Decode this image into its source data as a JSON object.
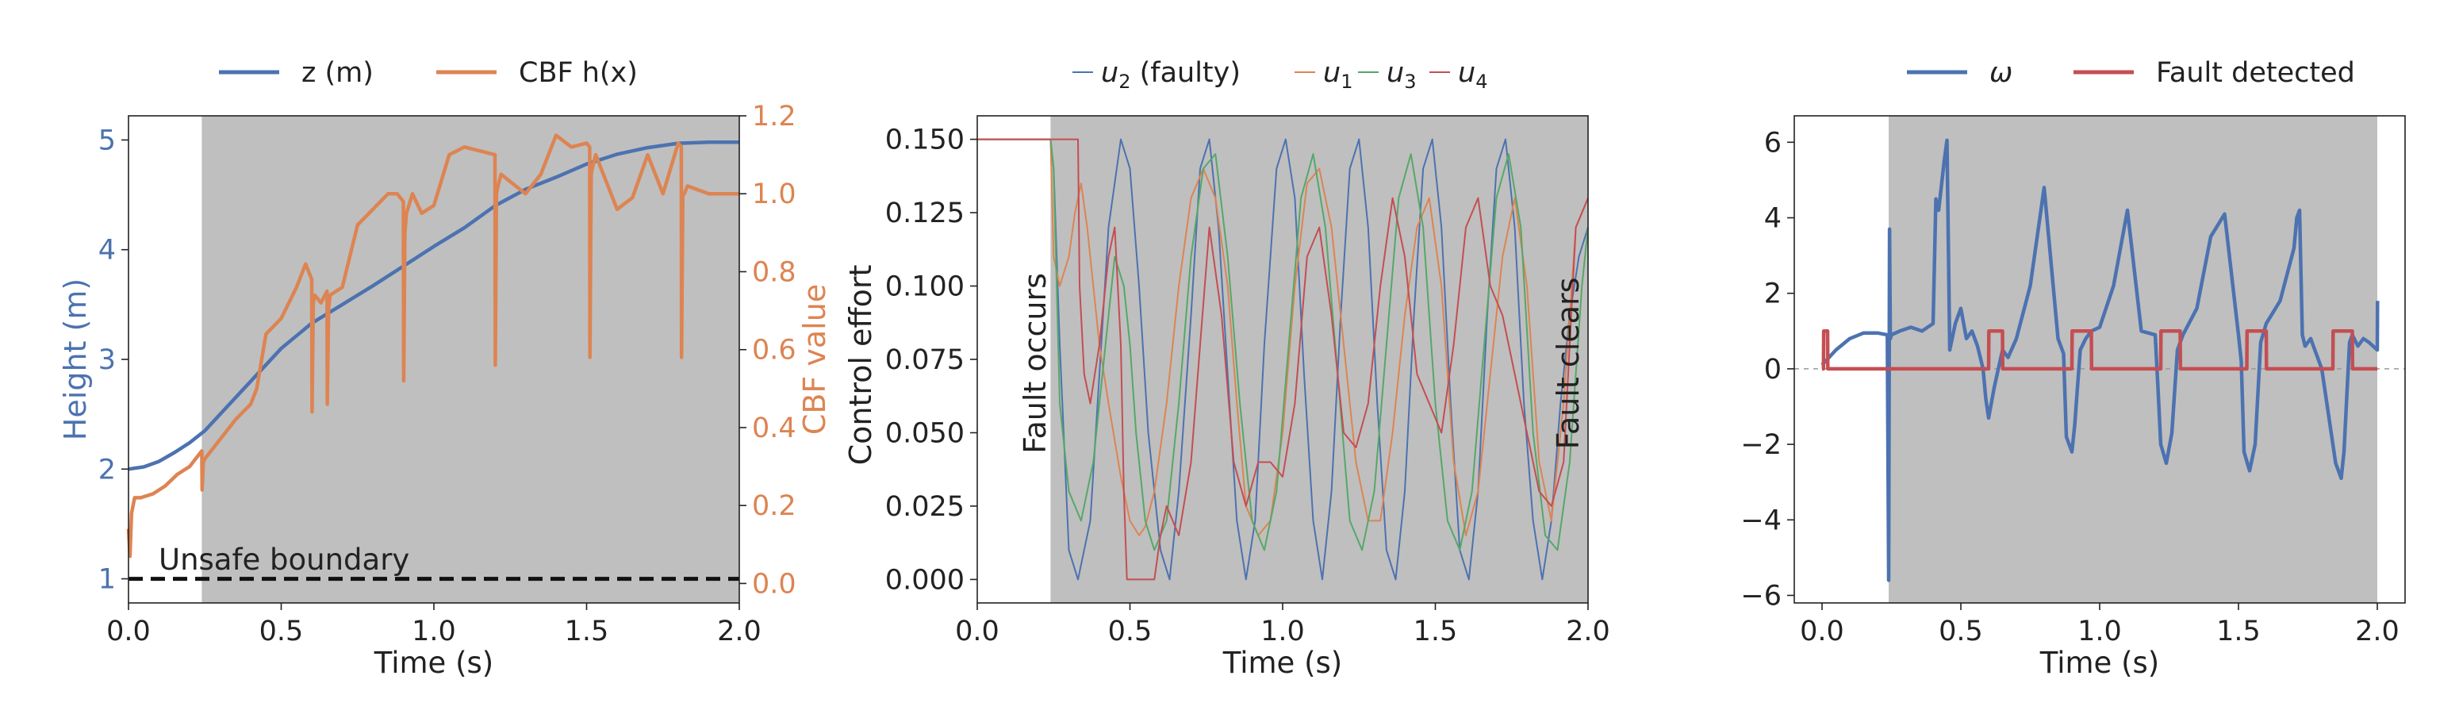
{
  "chart_data": [
    {
      "type": "line",
      "legend": {
        "placement": "top-center",
        "entries": [
          "z (m)",
          "CBF h(x)"
        ]
      },
      "xlabel": "Time (s)",
      "ylabel": "Height (m)",
      "y2label": "CBF value",
      "xlim": [
        0,
        2
      ],
      "ylim": [
        0.78,
        5.22
      ],
      "y2lim": [
        -0.05,
        1.2
      ],
      "xticks": [
        "0.0",
        "0.5",
        "1.0",
        "1.5",
        "2.0"
      ],
      "yticks": [
        "1",
        "2",
        "3",
        "4",
        "5"
      ],
      "y2ticks": [
        "0.0",
        "0.2",
        "0.4",
        "0.6",
        "0.8",
        "1.0",
        "1.2"
      ],
      "shaded_region": [
        0.24,
        2.0
      ],
      "annotation": "Unsafe boundary",
      "boundary_y": 1,
      "series": [
        {
          "name": "z (m)",
          "color": "#4c72b0",
          "axis": "left",
          "x": [
            0,
            0.05,
            0.1,
            0.15,
            0.2,
            0.25,
            0.3,
            0.4,
            0.5,
            0.6,
            0.7,
            0.8,
            0.9,
            1.0,
            1.1,
            1.2,
            1.3,
            1.4,
            1.5,
            1.6,
            1.7,
            1.8,
            1.9,
            2.0
          ],
          "y": [
            2.0,
            2.02,
            2.07,
            2.15,
            2.24,
            2.35,
            2.5,
            2.8,
            3.1,
            3.33,
            3.5,
            3.67,
            3.85,
            4.03,
            4.2,
            4.4,
            4.55,
            4.66,
            4.78,
            4.87,
            4.93,
            4.97,
            4.98,
            4.98
          ]
        },
        {
          "name": "CBF h(x)",
          "color": "#dd8452",
          "axis": "right",
          "x": [
            0,
            0.005,
            0.01,
            0.02,
            0.04,
            0.08,
            0.12,
            0.16,
            0.2,
            0.24,
            0.241,
            0.245,
            0.25,
            0.3,
            0.35,
            0.4,
            0.42,
            0.45,
            0.5,
            0.55,
            0.58,
            0.6,
            0.601,
            0.605,
            0.61,
            0.63,
            0.65,
            0.651,
            0.655,
            0.66,
            0.7,
            0.75,
            0.8,
            0.85,
            0.88,
            0.9,
            0.901,
            0.905,
            0.91,
            0.93,
            0.96,
            1.0,
            1.05,
            1.1,
            1.15,
            1.2,
            1.201,
            1.205,
            1.21,
            1.22,
            1.3,
            1.35,
            1.4,
            1.45,
            1.5,
            1.51,
            1.511,
            1.515,
            1.52,
            1.53,
            1.6,
            1.65,
            1.7,
            1.75,
            1.8,
            1.81,
            1.811,
            1.815,
            1.82,
            1.83,
            1.9,
            2.0
          ],
          "y": [
            0.14,
            0.07,
            0.18,
            0.22,
            0.22,
            0.23,
            0.25,
            0.28,
            0.3,
            0.34,
            0.24,
            0.31,
            0.32,
            0.37,
            0.42,
            0.46,
            0.5,
            0.64,
            0.68,
            0.76,
            0.82,
            0.78,
            0.44,
            0.72,
            0.74,
            0.72,
            0.75,
            0.46,
            0.7,
            0.74,
            0.76,
            0.92,
            0.96,
            1.0,
            1.0,
            0.98,
            0.52,
            0.9,
            0.95,
            1.0,
            0.95,
            0.97,
            1.1,
            1.12,
            1.11,
            1.1,
            0.56,
            1.0,
            1.02,
            1.05,
            1.0,
            1.05,
            1.15,
            1.12,
            1.13,
            1.12,
            0.58,
            1.05,
            1.07,
            1.1,
            0.96,
            0.99,
            1.1,
            1.0,
            1.13,
            1.12,
            0.58,
            1.0,
            1.0,
            1.02,
            1.0,
            1.0
          ]
        }
      ]
    },
    {
      "type": "line",
      "legend": {
        "placement": "top-center",
        "entries": [
          "u2 (faulty)",
          "u1",
          "u3",
          "u4"
        ]
      },
      "xlabel": "Time (s)",
      "ylabel": "Control effort",
      "xlim": [
        0,
        2
      ],
      "ylim": [
        -0.008,
        0.158
      ],
      "xticks": [
        "0.0",
        "0.5",
        "1.0",
        "1.5",
        "2.0"
      ],
      "yticks": [
        "0.000",
        "0.025",
        "0.050",
        "0.075",
        "0.100",
        "0.125",
        "0.150"
      ],
      "shaded_region": [
        0.24,
        2.0
      ],
      "annotations": [
        "Fault occurs",
        "Fault clears"
      ],
      "series": [
        {
          "name": "u2 (faulty)",
          "color": "#4c72b0",
          "x": [
            0,
            0.24,
            0.25,
            0.27,
            0.3,
            0.33,
            0.37,
            0.4,
            0.43,
            0.47,
            0.5,
            0.53,
            0.56,
            0.6,
            0.63,
            0.66,
            0.7,
            0.73,
            0.76,
            0.79,
            0.82,
            0.85,
            0.88,
            0.91,
            0.94,
            0.98,
            1.01,
            1.04,
            1.07,
            1.1,
            1.13,
            1.16,
            1.19,
            1.22,
            1.25,
            1.28,
            1.31,
            1.34,
            1.37,
            1.4,
            1.43,
            1.46,
            1.49,
            1.52,
            1.55,
            1.58,
            1.61,
            1.64,
            1.67,
            1.7,
            1.73,
            1.76,
            1.79,
            1.82,
            1.85,
            1.88,
            1.91,
            1.94,
            1.97,
            2.0
          ],
          "y": [
            0.15,
            0.15,
            0.14,
            0.08,
            0.01,
            0.0,
            0.02,
            0.07,
            0.12,
            0.15,
            0.14,
            0.1,
            0.05,
            0.01,
            0.0,
            0.03,
            0.09,
            0.14,
            0.15,
            0.12,
            0.07,
            0.02,
            0.0,
            0.02,
            0.08,
            0.14,
            0.15,
            0.13,
            0.07,
            0.02,
            0.0,
            0.03,
            0.09,
            0.14,
            0.15,
            0.12,
            0.06,
            0.01,
            0.0,
            0.03,
            0.09,
            0.14,
            0.15,
            0.12,
            0.06,
            0.01,
            0.0,
            0.03,
            0.09,
            0.14,
            0.15,
            0.12,
            0.06,
            0.02,
            0.0,
            0.02,
            0.06,
            0.09,
            0.11,
            0.12
          ]
        },
        {
          "name": "u1",
          "color": "#dd8452",
          "x": [
            0,
            0.24,
            0.25,
            0.27,
            0.3,
            0.32,
            0.34,
            0.36,
            0.38,
            0.4,
            0.43,
            0.47,
            0.5,
            0.53,
            0.55,
            0.58,
            0.62,
            0.66,
            0.7,
            0.74,
            0.78,
            0.82,
            0.85,
            0.88,
            0.92,
            0.96,
            1.0,
            1.04,
            1.08,
            1.12,
            1.16,
            1.2,
            1.24,
            1.28,
            1.32,
            1.36,
            1.4,
            1.44,
            1.48,
            1.52,
            1.56,
            1.6,
            1.64,
            1.68,
            1.72,
            1.76,
            1.8,
            1.84,
            1.88,
            1.92,
            1.96,
            2.0
          ],
          "y": [
            0.15,
            0.15,
            0.11,
            0.1,
            0.11,
            0.125,
            0.135,
            0.12,
            0.1,
            0.08,
            0.06,
            0.035,
            0.02,
            0.015,
            0.018,
            0.03,
            0.06,
            0.1,
            0.13,
            0.14,
            0.13,
            0.1,
            0.06,
            0.025,
            0.015,
            0.02,
            0.05,
            0.1,
            0.135,
            0.14,
            0.12,
            0.08,
            0.04,
            0.02,
            0.02,
            0.05,
            0.09,
            0.12,
            0.13,
            0.1,
            0.04,
            0.015,
            0.03,
            0.07,
            0.11,
            0.13,
            0.1,
            0.04,
            0.02,
            0.06,
            0.12,
            0.13
          ]
        },
        {
          "name": "u3",
          "color": "#55a868",
          "x": [
            0,
            0.24,
            0.25,
            0.27,
            0.3,
            0.34,
            0.38,
            0.42,
            0.45,
            0.48,
            0.5,
            0.52,
            0.55,
            0.58,
            0.62,
            0.66,
            0.7,
            0.74,
            0.78,
            0.82,
            0.86,
            0.9,
            0.94,
            0.98,
            1.02,
            1.06,
            1.1,
            1.14,
            1.18,
            1.22,
            1.26,
            1.3,
            1.34,
            1.38,
            1.42,
            1.46,
            1.5,
            1.54,
            1.58,
            1.62,
            1.66,
            1.7,
            1.74,
            1.78,
            1.82,
            1.86,
            1.9,
            1.94,
            1.98,
            2.0
          ],
          "y": [
            0.15,
            0.15,
            0.14,
            0.06,
            0.03,
            0.02,
            0.04,
            0.08,
            0.11,
            0.1,
            0.08,
            0.05,
            0.02,
            0.01,
            0.02,
            0.06,
            0.11,
            0.14,
            0.145,
            0.11,
            0.06,
            0.02,
            0.01,
            0.03,
            0.08,
            0.13,
            0.145,
            0.12,
            0.07,
            0.02,
            0.01,
            0.03,
            0.08,
            0.13,
            0.145,
            0.12,
            0.06,
            0.02,
            0.01,
            0.03,
            0.08,
            0.13,
            0.145,
            0.12,
            0.05,
            0.015,
            0.01,
            0.04,
            0.1,
            0.12
          ]
        },
        {
          "name": "u4",
          "color": "#c44e52",
          "x": [
            0,
            0.24,
            0.33,
            0.335,
            0.35,
            0.37,
            0.4,
            0.43,
            0.45,
            0.47,
            0.48,
            0.49,
            0.5,
            0.55,
            0.58,
            0.6,
            0.62,
            0.66,
            0.7,
            0.73,
            0.76,
            0.8,
            0.84,
            0.88,
            0.92,
            0.96,
            1.0,
            1.04,
            1.08,
            1.12,
            1.16,
            1.2,
            1.24,
            1.28,
            1.32,
            1.36,
            1.4,
            1.44,
            1.48,
            1.52,
            1.56,
            1.6,
            1.64,
            1.68,
            1.72,
            1.76,
            1.8,
            1.84,
            1.88,
            1.92,
            1.96,
            2.0
          ],
          "y": [
            0.15,
            0.15,
            0.15,
            0.1,
            0.07,
            0.06,
            0.08,
            0.11,
            0.12,
            0.08,
            0.03,
            0.0,
            0.0,
            0.0,
            0.0,
            0.015,
            0.025,
            0.015,
            0.04,
            0.08,
            0.12,
            0.09,
            0.04,
            0.025,
            0.04,
            0.04,
            0.035,
            0.06,
            0.11,
            0.12,
            0.09,
            0.05,
            0.045,
            0.06,
            0.1,
            0.13,
            0.11,
            0.07,
            0.06,
            0.05,
            0.08,
            0.12,
            0.13,
            0.1,
            0.09,
            0.07,
            0.05,
            0.03,
            0.025,
            0.04,
            0.12,
            0.13
          ]
        }
      ]
    },
    {
      "type": "line",
      "legend": {
        "placement": "top-center",
        "entries": [
          "ω",
          "Fault detected"
        ]
      },
      "xlabel": "Time (s)",
      "xlim": [
        -0.1,
        2.1
      ],
      "ylim": [
        -6.2,
        6.7
      ],
      "xticks": [
        "0.0",
        "0.5",
        "1.0",
        "1.5",
        "2.0"
      ],
      "yticks": [
        "−6",
        "−4",
        "−2",
        "0",
        "2",
        "4",
        "6"
      ],
      "shaded_region": [
        0.24,
        2.0
      ],
      "reference_y": 0,
      "series": [
        {
          "name": "ω",
          "color": "#4c72b0",
          "x": [
            0,
            0.05,
            0.1,
            0.15,
            0.2,
            0.235,
            0.24,
            0.243,
            0.246,
            0.25,
            0.28,
            0.32,
            0.36,
            0.4,
            0.41,
            0.42,
            0.44,
            0.45,
            0.46,
            0.48,
            0.5,
            0.52,
            0.54,
            0.56,
            0.58,
            0.59,
            0.6,
            0.62,
            0.65,
            0.67,
            0.7,
            0.75,
            0.8,
            0.85,
            0.87,
            0.88,
            0.9,
            0.91,
            0.93,
            0.95,
            0.97,
            1.0,
            1.05,
            1.1,
            1.15,
            1.2,
            1.21,
            1.22,
            1.24,
            1.26,
            1.28,
            1.3,
            1.35,
            1.4,
            1.45,
            1.5,
            1.51,
            1.52,
            1.54,
            1.56,
            1.58,
            1.6,
            1.65,
            1.7,
            1.71,
            1.72,
            1.73,
            1.74,
            1.76,
            1.78,
            1.8,
            1.82,
            1.85,
            1.87,
            1.88,
            1.9,
            1.91,
            1.93,
            1.95,
            1.97,
            2.0,
            2.001
          ],
          "y": [
            0.1,
            0.5,
            0.8,
            0.95,
            0.95,
            0.9,
            -5.6,
            3.7,
            0.8,
            0.9,
            1.0,
            1.1,
            1.0,
            1.2,
            4.5,
            4.2,
            5.5,
            6.05,
            0.5,
            1.2,
            1.6,
            0.8,
            1.0,
            0.6,
            0.0,
            -0.8,
            -1.3,
            -0.5,
            0.5,
            0.3,
            0.8,
            2.2,
            4.8,
            0.8,
            0.4,
            -1.8,
            -2.2,
            -1.5,
            0.5,
            0.8,
            1.0,
            1.1,
            2.2,
            4.2,
            1.0,
            0.9,
            -0.5,
            -2.0,
            -2.5,
            -1.7,
            0.5,
            0.9,
            1.6,
            3.5,
            4.1,
            0.9,
            0.2,
            -2.2,
            -2.7,
            -2.0,
            0.7,
            1.2,
            1.8,
            3.2,
            4.0,
            4.2,
            0.9,
            0.6,
            0.8,
            0.4,
            0.0,
            -1.0,
            -2.5,
            -2.9,
            -2.2,
            0.7,
            0.9,
            0.6,
            0.8,
            0.7,
            0.5,
            1.8
          ]
        },
        {
          "name": "Fault detected",
          "color": "#c44e52",
          "x": [
            0,
            0.005,
            0.006,
            0.02,
            0.021,
            0.6,
            0.601,
            0.65,
            0.651,
            0.9,
            0.901,
            0.97,
            0.971,
            1.22,
            1.221,
            1.29,
            1.291,
            1.53,
            1.531,
            1.6,
            1.601,
            1.84,
            1.841,
            1.91,
            1.911,
            2.0
          ],
          "y": [
            0,
            0,
            1,
            1,
            0,
            0,
            1,
            1,
            0,
            0,
            1,
            1,
            0,
            0,
            1,
            1,
            0,
            0,
            1,
            1,
            0,
            0,
            1,
            1,
            0,
            0
          ]
        }
      ]
    }
  ]
}
